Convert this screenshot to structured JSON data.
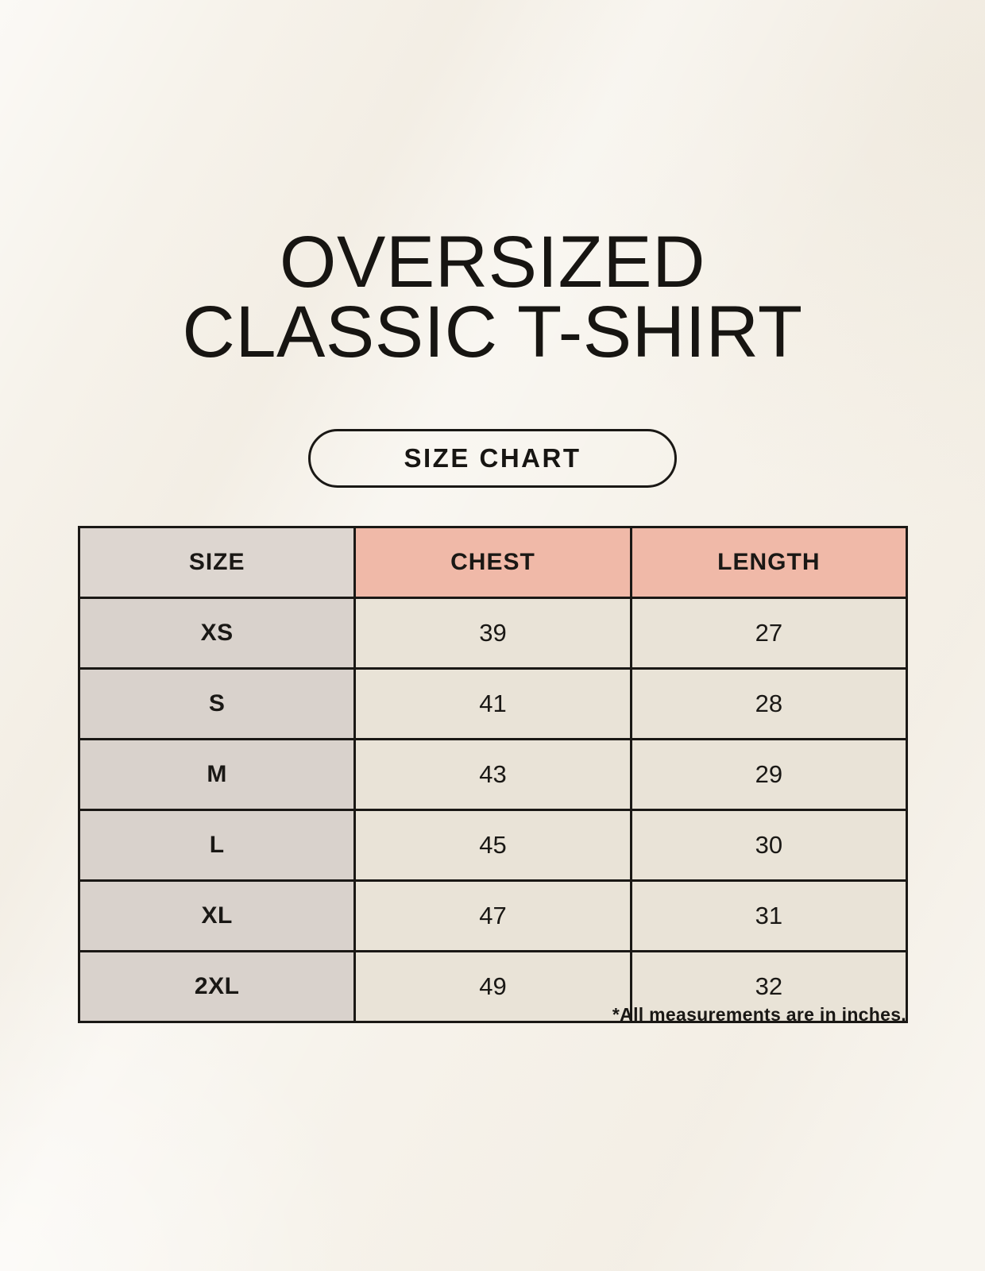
{
  "page": {
    "title_line1": "OVERSIZED",
    "title_line2": "CLASSIC T-SHIRT",
    "size_chart_button_label": "SIZE CHART",
    "footnote": "*All measurements are in inches."
  },
  "colors": {
    "background": "#f6f2ea",
    "header_size_bg": "#ddd6d0",
    "header_measure_bg": "#f0b9a8",
    "row_label_bg": "#d9d2cc",
    "row_value_bg": "#e9e3d7",
    "border_and_text": "#1a1815"
  },
  "chart_data": {
    "type": "table",
    "title": "OVERSIZED CLASSIC T-SHIRT",
    "subtitle": "SIZE CHART",
    "columns": [
      "SIZE",
      "CHEST",
      "LENGTH"
    ],
    "rows": [
      [
        "XS",
        39,
        27
      ],
      [
        "S",
        41,
        28
      ],
      [
        "M",
        43,
        29
      ],
      [
        "L",
        45,
        30
      ],
      [
        "XL",
        47,
        31
      ],
      [
        "2XL",
        49,
        32
      ]
    ],
    "units": "inches",
    "footnote": "*All measurements are in inches."
  }
}
